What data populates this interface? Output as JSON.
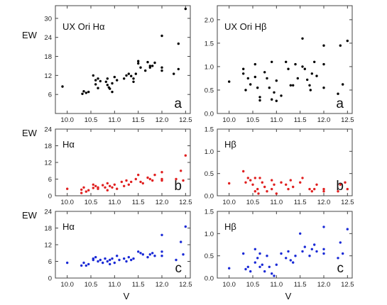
{
  "chart_data": [
    {
      "type": "scatter",
      "title": "UX Ori  Hα",
      "panel_label": "a",
      "ylabel": "EW",
      "xlabel": "",
      "xlim": [
        9.75,
        12.6
      ],
      "ylim": [
        0,
        34
      ],
      "xticks": [
        "10.0",
        "10.5",
        "11.0",
        "11.5",
        "12.0",
        "12.5"
      ],
      "yticks": [
        "6",
        "12",
        "18",
        "24",
        "30"
      ],
      "color": "#000000",
      "points": [
        [
          9.9,
          8.5
        ],
        [
          10.35,
          7.0
        ],
        [
          10.32,
          6.2
        ],
        [
          10.4,
          6.5
        ],
        [
          10.45,
          6.8
        ],
        [
          10.55,
          12.0
        ],
        [
          10.6,
          10.5
        ],
        [
          10.6,
          9.2
        ],
        [
          10.65,
          11.0
        ],
        [
          10.65,
          8.0
        ],
        [
          10.7,
          10.2
        ],
        [
          10.82,
          10.0
        ],
        [
          10.85,
          11.0
        ],
        [
          10.85,
          9.0
        ],
        [
          10.88,
          8.2
        ],
        [
          10.9,
          7.8
        ],
        [
          10.95,
          9.5
        ],
        [
          10.95,
          6.8
        ],
        [
          11.0,
          11.5
        ],
        [
          11.05,
          10.5
        ],
        [
          11.2,
          11.0
        ],
        [
          11.25,
          12.0
        ],
        [
          11.3,
          12.5
        ],
        [
          11.35,
          11.8
        ],
        [
          11.4,
          11.0
        ],
        [
          11.4,
          10.0
        ],
        [
          11.45,
          12.5
        ],
        [
          11.5,
          16.5
        ],
        [
          11.5,
          15.8
        ],
        [
          11.55,
          14.5
        ],
        [
          11.65,
          13.5
        ],
        [
          11.7,
          16.2
        ],
        [
          11.75,
          15.0
        ],
        [
          11.75,
          14.5
        ],
        [
          11.8,
          15.0
        ],
        [
          11.85,
          16.0
        ],
        [
          12.0,
          24.5
        ],
        [
          12.0,
          14.5
        ],
        [
          12.0,
          13.5
        ],
        [
          12.25,
          12.5
        ],
        [
          12.35,
          22.0
        ],
        [
          12.35,
          14.0
        ],
        [
          12.5,
          33.0
        ]
      ]
    },
    {
      "type": "scatter",
      "title": "UX Ori  Hβ",
      "panel_label": "a",
      "ylabel": "",
      "xlabel": "",
      "xlim": [
        9.75,
        12.6
      ],
      "ylim": [
        0,
        2.3
      ],
      "xticks": [
        "10.0",
        "10.5",
        "11.0",
        "11.5",
        "12.0",
        "12.5"
      ],
      "yticks": [
        "0.0",
        "0.5",
        "1.0",
        "1.5",
        "2.0"
      ],
      "color": "#000000",
      "points": [
        [
          10.0,
          0.68
        ],
        [
          10.3,
          0.95
        ],
        [
          10.3,
          0.85
        ],
        [
          10.35,
          0.5
        ],
        [
          10.4,
          0.75
        ],
        [
          10.45,
          0.62
        ],
        [
          10.55,
          1.05
        ],
        [
          10.55,
          0.78
        ],
        [
          10.6,
          0.55
        ],
        [
          10.65,
          0.35
        ],
        [
          10.65,
          0.28
        ],
        [
          10.75,
          0.88
        ],
        [
          10.8,
          0.75
        ],
        [
          10.85,
          0.55
        ],
        [
          10.9,
          1.1
        ],
        [
          10.9,
          0.3
        ],
        [
          10.95,
          0.45
        ],
        [
          11.0,
          0.7
        ],
        [
          11.0,
          0.27
        ],
        [
          11.1,
          0.38
        ],
        [
          11.2,
          1.1
        ],
        [
          11.25,
          0.95
        ],
        [
          11.3,
          0.6
        ],
        [
          11.35,
          0.6
        ],
        [
          11.4,
          1.05
        ],
        [
          11.45,
          0.75
        ],
        [
          11.55,
          1.6
        ],
        [
          11.55,
          1.0
        ],
        [
          11.6,
          0.95
        ],
        [
          11.65,
          0.72
        ],
        [
          11.7,
          0.6
        ],
        [
          11.72,
          0.5
        ],
        [
          11.75,
          0.85
        ],
        [
          11.8,
          1.1
        ],
        [
          11.85,
          0.8
        ],
        [
          12.0,
          1.45
        ],
        [
          12.0,
          1.05
        ],
        [
          12.0,
          0.55
        ],
        [
          12.3,
          0.42
        ],
        [
          12.35,
          1.45
        ],
        [
          12.4,
          0.62
        ],
        [
          12.5,
          1.55
        ]
      ]
    },
    {
      "type": "scatter",
      "title": "Hα",
      "panel_label": "b",
      "ylabel": "EW",
      "xlabel": "",
      "xlim": [
        9.75,
        12.6
      ],
      "ylim": [
        0,
        24
      ],
      "xticks": [
        "10.0",
        "10.5",
        "11.0",
        "11.5",
        "12.0",
        "12.5"
      ],
      "yticks": [
        "0",
        "6",
        "12",
        "18",
        "24"
      ],
      "color": "#e02020",
      "points": [
        [
          10.0,
          2.5
        ],
        [
          10.3,
          2.2
        ],
        [
          10.3,
          1.0
        ],
        [
          10.35,
          3.0
        ],
        [
          10.4,
          1.5
        ],
        [
          10.45,
          2.0
        ],
        [
          10.55,
          4.0
        ],
        [
          10.55,
          2.8
        ],
        [
          10.6,
          3.5
        ],
        [
          10.65,
          3.0
        ],
        [
          10.65,
          2.5
        ],
        [
          10.75,
          3.8
        ],
        [
          10.8,
          3.0
        ],
        [
          10.85,
          4.5
        ],
        [
          10.85,
          2.0
        ],
        [
          10.9,
          3.5
        ],
        [
          10.95,
          3.0
        ],
        [
          11.0,
          4.0
        ],
        [
          11.05,
          2.5
        ],
        [
          11.15,
          5.0
        ],
        [
          11.2,
          3.5
        ],
        [
          11.25,
          5.5
        ],
        [
          11.3,
          4.0
        ],
        [
          11.35,
          5.0
        ],
        [
          11.45,
          6.0
        ],
        [
          11.5,
          7.5
        ],
        [
          11.55,
          5.0
        ],
        [
          11.6,
          4.5
        ],
        [
          11.7,
          6.5
        ],
        [
          11.75,
          6.0
        ],
        [
          11.8,
          5.5
        ],
        [
          11.85,
          7.5
        ],
        [
          12.0,
          8.5
        ],
        [
          12.0,
          6.0
        ],
        [
          12.0,
          5.5
        ],
        [
          12.3,
          6.0
        ],
        [
          12.4,
          9.0
        ],
        [
          12.45,
          5.5
        ],
        [
          12.5,
          14.5
        ]
      ]
    },
    {
      "type": "scatter",
      "title": "Hβ",
      "panel_label": "b",
      "ylabel": "",
      "xlabel": "",
      "xlim": [
        9.75,
        12.6
      ],
      "ylim": [
        0,
        1.5
      ],
      "xticks": [
        "10.0",
        "10.5",
        "11.0",
        "11.5",
        "12.0",
        "12.5"
      ],
      "yticks": [
        "0.0",
        "0.5",
        "1.0",
        "1.5"
      ],
      "color": "#e02020",
      "points": [
        [
          10.0,
          0.28
        ],
        [
          10.3,
          0.55
        ],
        [
          10.35,
          0.3
        ],
        [
          10.4,
          0.4
        ],
        [
          10.45,
          0.35
        ],
        [
          10.5,
          0.25
        ],
        [
          10.55,
          0.4
        ],
        [
          10.55,
          0.1
        ],
        [
          10.6,
          0.15
        ],
        [
          10.62,
          0.05
        ],
        [
          10.65,
          0.4
        ],
        [
          10.7,
          0.3
        ],
        [
          10.75,
          0.2
        ],
        [
          10.8,
          0.1
        ],
        [
          10.9,
          0.35
        ],
        [
          10.9,
          0.15
        ],
        [
          10.95,
          0.25
        ],
        [
          11.0,
          0.05
        ],
        [
          11.1,
          0.3
        ],
        [
          11.2,
          0.25
        ],
        [
          11.25,
          0.15
        ],
        [
          11.3,
          0.35
        ],
        [
          11.35,
          0.2
        ],
        [
          11.5,
          0.3
        ],
        [
          11.55,
          0.4
        ],
        [
          11.7,
          0.15
        ],
        [
          11.75,
          0.1
        ],
        [
          11.8,
          0.15
        ],
        [
          11.85,
          0.25
        ],
        [
          12.0,
          0.1
        ],
        [
          12.0,
          0.15
        ],
        [
          12.3,
          0.1
        ],
        [
          12.35,
          0.25
        ],
        [
          12.45,
          0.3
        ],
        [
          12.5,
          0.15
        ]
      ]
    },
    {
      "type": "scatter",
      "title": "Hα",
      "panel_label": "c",
      "ylabel": "EW",
      "xlabel": "V",
      "xlim": [
        9.75,
        12.6
      ],
      "ylim": [
        0,
        24
      ],
      "xticks": [
        "10.0",
        "10.5",
        "11.0",
        "11.5",
        "12.0",
        "12.5"
      ],
      "yticks": [
        "0",
        "6",
        "12",
        "18",
        "24"
      ],
      "color": "#1a2ad6",
      "points": [
        [
          10.0,
          5.5
        ],
        [
          10.3,
          4.5
        ],
        [
          10.35,
          5.5
        ],
        [
          10.4,
          4.5
        ],
        [
          10.45,
          5.0
        ],
        [
          10.55,
          7.0
        ],
        [
          10.55,
          6.5
        ],
        [
          10.6,
          7.5
        ],
        [
          10.65,
          6.0
        ],
        [
          10.7,
          6.5
        ],
        [
          10.75,
          5.5
        ],
        [
          10.8,
          7.0
        ],
        [
          10.85,
          6.0
        ],
        [
          10.9,
          6.5
        ],
        [
          10.9,
          5.0
        ],
        [
          10.95,
          7.0
        ],
        [
          11.0,
          5.5
        ],
        [
          11.05,
          8.0
        ],
        [
          11.1,
          6.5
        ],
        [
          11.2,
          7.0
        ],
        [
          11.25,
          6.0
        ],
        [
          11.3,
          7.5
        ],
        [
          11.35,
          6.5
        ],
        [
          11.4,
          7.0
        ],
        [
          11.5,
          9.5
        ],
        [
          11.55,
          9.0
        ],
        [
          11.6,
          8.5
        ],
        [
          11.7,
          7.5
        ],
        [
          11.75,
          8.5
        ],
        [
          11.8,
          9.0
        ],
        [
          11.85,
          8.0
        ],
        [
          12.0,
          15.5
        ],
        [
          12.0,
          9.5
        ],
        [
          12.0,
          8.0
        ],
        [
          12.3,
          6.5
        ],
        [
          12.4,
          13.0
        ],
        [
          12.45,
          8.5
        ],
        [
          12.5,
          18.5
        ]
      ]
    },
    {
      "type": "scatter",
      "title": "Hβ",
      "panel_label": "c",
      "ylabel": "",
      "xlabel": "V",
      "xlim": [
        9.75,
        12.6
      ],
      "ylim": [
        0,
        1.5
      ],
      "xticks": [
        "10.0",
        "10.5",
        "11.0",
        "11.5",
        "12.0",
        "12.5"
      ],
      "yticks": [
        "0.0",
        "0.5",
        "1.0",
        "1.5"
      ],
      "color": "#1a2ad6",
      "points": [
        [
          10.0,
          0.22
        ],
        [
          10.3,
          0.55
        ],
        [
          10.35,
          0.2
        ],
        [
          10.4,
          0.25
        ],
        [
          10.45,
          0.15
        ],
        [
          10.55,
          0.65
        ],
        [
          10.55,
          0.35
        ],
        [
          10.6,
          0.45
        ],
        [
          10.65,
          0.55
        ],
        [
          10.65,
          0.25
        ],
        [
          10.7,
          0.3
        ],
        [
          10.75,
          0.15
        ],
        [
          10.8,
          0.5
        ],
        [
          10.85,
          0.25
        ],
        [
          10.9,
          0.1
        ],
        [
          10.95,
          0.05
        ],
        [
          11.0,
          0.3
        ],
        [
          11.1,
          0.55
        ],
        [
          11.2,
          0.45
        ],
        [
          11.25,
          0.6
        ],
        [
          11.3,
          0.4
        ],
        [
          11.35,
          0.35
        ],
        [
          11.4,
          0.5
        ],
        [
          11.5,
          1.0
        ],
        [
          11.55,
          0.6
        ],
        [
          11.6,
          0.7
        ],
        [
          11.7,
          0.5
        ],
        [
          11.75,
          0.65
        ],
        [
          11.8,
          0.75
        ],
        [
          11.85,
          0.6
        ],
        [
          12.0,
          1.15
        ],
        [
          12.0,
          0.65
        ],
        [
          12.0,
          0.55
        ],
        [
          12.3,
          0.45
        ],
        [
          12.35,
          0.8
        ],
        [
          12.4,
          0.55
        ],
        [
          12.5,
          1.1
        ]
      ]
    }
  ]
}
